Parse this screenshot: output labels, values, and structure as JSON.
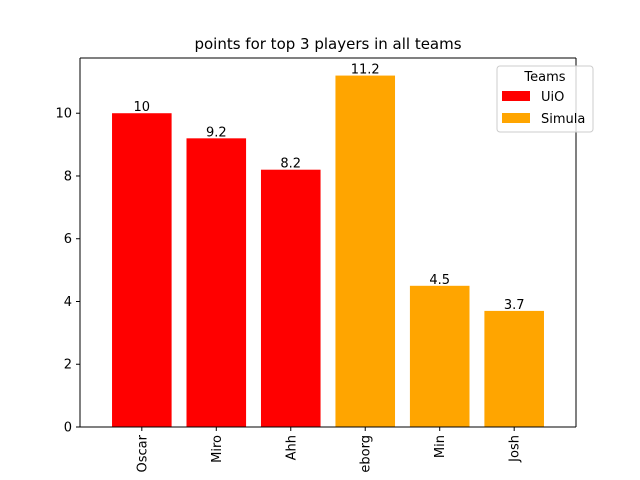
{
  "chart_data": {
    "type": "bar",
    "title": "points for top 3 players in all teams",
    "xlabel": "",
    "ylabel": "",
    "categories": [
      "Oscar",
      "Miro",
      "Ahh",
      "eborg",
      "Min",
      "Josh"
    ],
    "values": [
      10,
      9.2,
      8.2,
      11.2,
      4.5,
      3.7
    ],
    "data_labels": [
      "10",
      "9.2",
      "8.2",
      "11.2",
      "4.5",
      "3.7"
    ],
    "teams": [
      "UiO",
      "UiO",
      "UiO",
      "Simula",
      "Simula",
      "Simula"
    ],
    "series": [
      {
        "name": "UiO",
        "color": "#ff0000"
      },
      {
        "name": "Simula",
        "color": "#ffa500"
      }
    ],
    "ylim": [
      0,
      11.76
    ],
    "yticks": [
      0,
      2,
      4,
      6,
      8,
      10
    ],
    "xtick_rotation": "vertical",
    "grid": false,
    "legend": {
      "title": "Teams",
      "placement": "upper-right"
    }
  }
}
